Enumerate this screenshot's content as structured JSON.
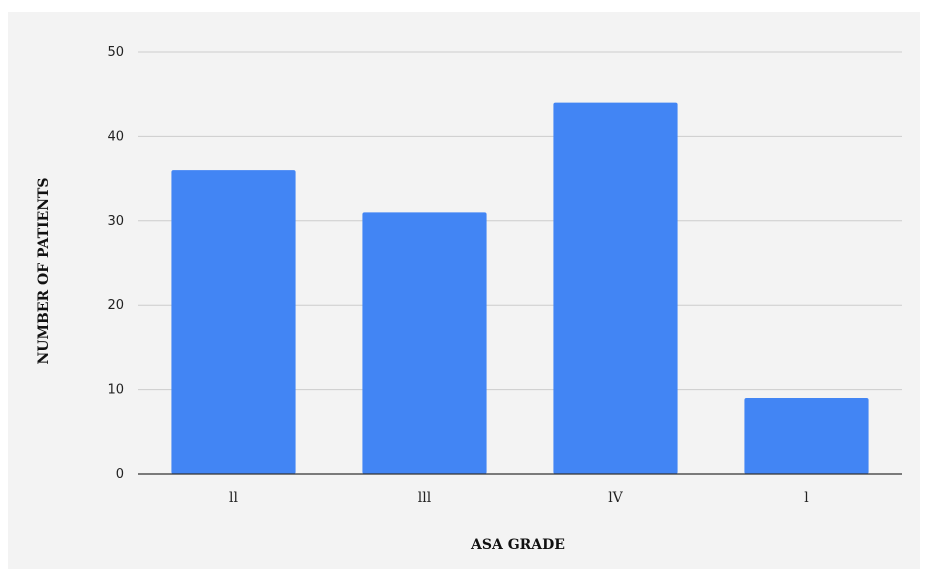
{
  "chart_data": {
    "type": "bar",
    "title": "",
    "xlabel": "ASA GRADE",
    "ylabel": "NUMBER OF PATIENTS",
    "categories": [
      "ll",
      "lll",
      "lV",
      "l"
    ],
    "values": [
      36,
      31,
      44,
      9
    ],
    "ylim": [
      0,
      50
    ],
    "yticks": [
      0,
      10,
      20,
      30,
      40,
      50
    ],
    "grid": true,
    "legend": "none",
    "bar_color": "#4285f4",
    "background_color": "#f3f3f3",
    "grid_color": "#cccccc"
  }
}
